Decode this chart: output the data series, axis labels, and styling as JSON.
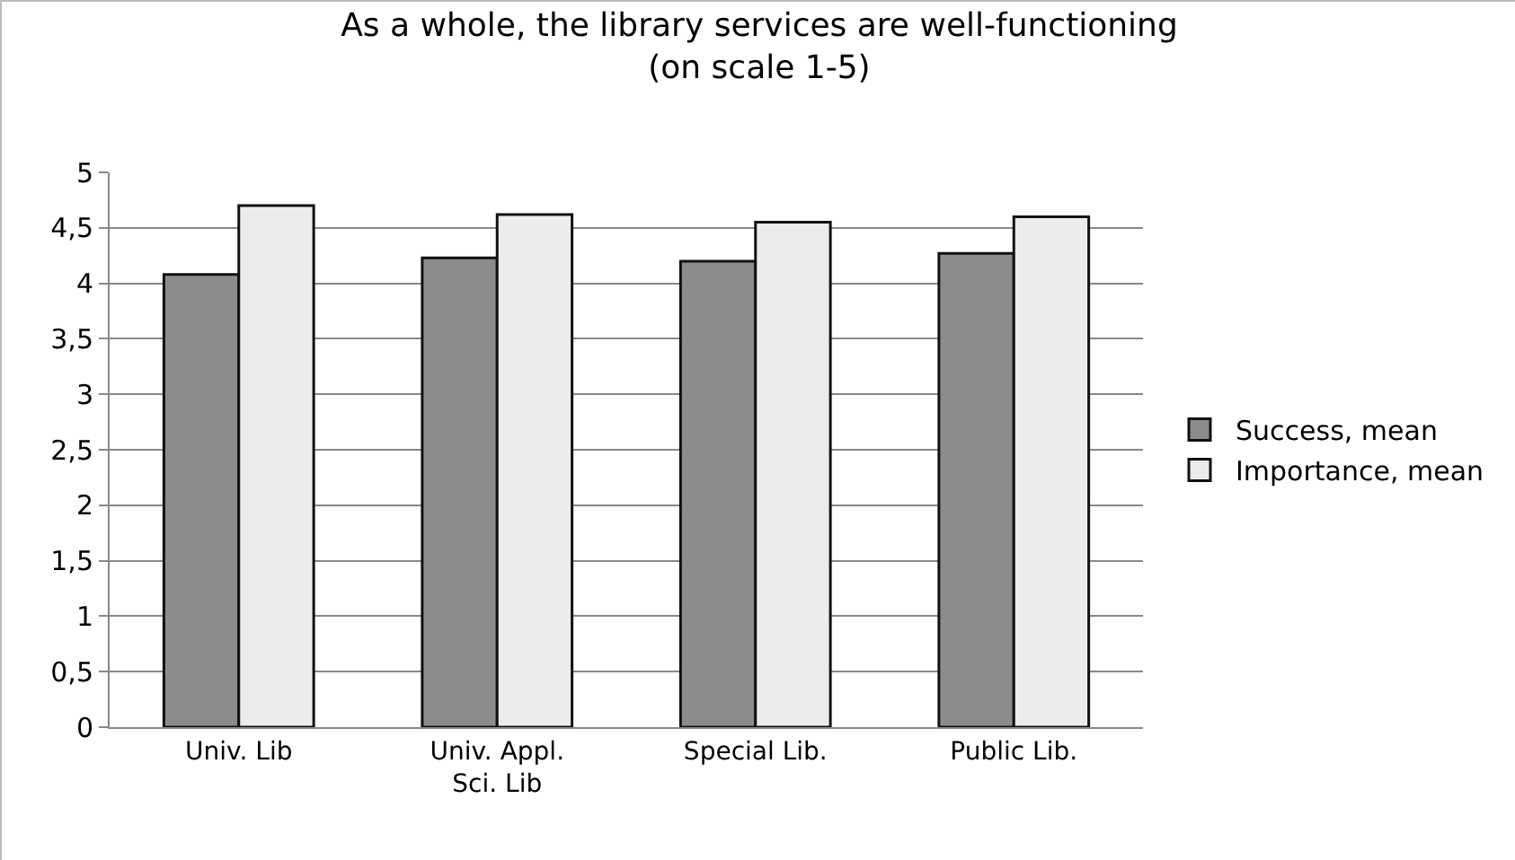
{
  "chart_data": {
    "type": "bar",
    "title": "As a whole, the library services are well-functioning",
    "subtitle": "(on scale 1-5)",
    "categories": [
      "Univ. Lib",
      "Univ. Appl. Sci. Lib",
      "Special Lib.",
      "Public Lib."
    ],
    "series": [
      {
        "name": "Success, mean",
        "color": "#8c8c8c",
        "values": [
          4.08,
          4.23,
          4.2,
          4.27
        ]
      },
      {
        "name": "Importance, mean",
        "color": "#ececec",
        "values": [
          4.7,
          4.62,
          4.55,
          4.6
        ]
      }
    ],
    "ylim": [
      0,
      5
    ],
    "yticks": [
      0,
      {
        "value": 0.5,
        "label": "0,5"
      },
      1,
      {
        "value": 1.5,
        "label": "1,5"
      },
      2,
      {
        "value": 2.5,
        "label": "2,5"
      },
      3,
      {
        "value": 3.5,
        "label": "3,5"
      },
      4,
      {
        "value": 4.5,
        "label": "4,5"
      },
      5
    ],
    "grid": "y",
    "legend": "right"
  }
}
